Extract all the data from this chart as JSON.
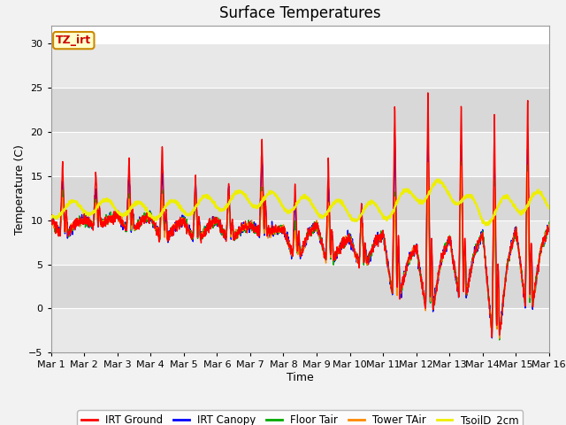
{
  "title": "Surface Temperatures",
  "xlabel": "Time",
  "ylabel": "Temperature (C)",
  "ylim": [
    -5,
    32
  ],
  "xlim": [
    0,
    15
  ],
  "yticks": [
    -5,
    0,
    5,
    10,
    15,
    20,
    25,
    30
  ],
  "xtick_labels": [
    "Mar 1",
    "Mar 2",
    "Mar 3",
    "Mar 4",
    "Mar 5",
    "Mar 6",
    "Mar 7",
    "Mar 8",
    "Mar 9",
    "Mar 10",
    "Mar 11",
    "Mar 12",
    "Mar 13",
    "Mar 14",
    "Mar 15",
    "Mar 16"
  ],
  "xtick_positions": [
    0,
    1,
    2,
    3,
    4,
    5,
    6,
    7,
    8,
    9,
    10,
    11,
    12,
    13,
    14,
    15
  ],
  "colors": {
    "IRT Ground": "#ff0000",
    "IRT Canopy": "#0000ff",
    "Floor Tair": "#00aa00",
    "Tower TAir": "#ff8800",
    "TsoilD_2cm": "#eeee00"
  },
  "legend_labels": [
    "IRT Ground",
    "IRT Canopy",
    "Floor Tair",
    "Tower TAir",
    "TsoilD_2cm"
  ],
  "annotation_text": "TZ_irt",
  "annotation_facecolor": "#ffffcc",
  "annotation_edgecolor": "#cc8800",
  "annotation_textcolor": "#cc0000",
  "band_colors": [
    "#e8e8e8",
    "#d8d8d8"
  ],
  "title_fontsize": 12,
  "axis_label_fontsize": 9,
  "tick_fontsize": 8
}
